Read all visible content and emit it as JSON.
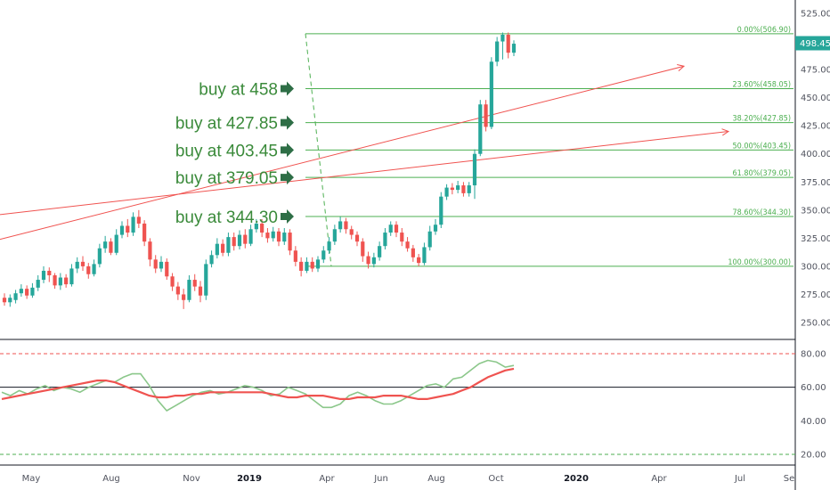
{
  "chart_data": {
    "type": "candlestick",
    "price_axis": {
      "ticks": [
        250,
        275,
        300,
        325,
        350,
        375,
        400,
        425,
        450,
        475,
        500,
        525
      ],
      "tick_labels": [
        "250.00",
        "275.00",
        "300.00",
        "325.00",
        "350.00",
        "375.00",
        "400.00",
        "425.00",
        "450.00",
        "475.00",
        "",
        "525.00"
      ],
      "ylim": [
        238,
        530
      ]
    },
    "last_price": {
      "value": 498.45,
      "label": "498.45",
      "color": "#26a69a"
    },
    "time_axis": {
      "labels": [
        "May",
        "Aug",
        "Nov",
        "2019",
        "Apr",
        "Jun",
        "Aug",
        "Oct",
        "2020",
        "Apr",
        "Jul",
        "Se"
      ],
      "bold": [
        "2019",
        "2020"
      ]
    },
    "fib_levels": [
      {
        "value": 506.9,
        "label": "0.00%(506.90)"
      },
      {
        "value": 458.05,
        "label": "23.60%(458.05)"
      },
      {
        "value": 427.85,
        "label": "38.20%(427.85)"
      },
      {
        "value": 403.45,
        "label": "50.00%(403.45)"
      },
      {
        "value": 379.05,
        "label": "61.80%(379.05)"
      },
      {
        "value": 344.3,
        "label": "78.60%(344.30)"
      },
      {
        "value": 300.0,
        "label": "100.00%(300.00)"
      }
    ],
    "annotations": [
      {
        "text": "buy at 458",
        "price": 458
      },
      {
        "text": "buy at 427.85",
        "price": 427.85
      },
      {
        "text": "buy at 403.45",
        "price": 403.45
      },
      {
        "text": "buy at 379.05",
        "price": 379.05
      },
      {
        "text": "buy at 344.30",
        "price": 344.3
      }
    ],
    "candles": [
      [
        272,
        268,
        276,
        265
      ],
      [
        268,
        272,
        275,
        264
      ],
      [
        270,
        276,
        279,
        267
      ],
      [
        276,
        280,
        284,
        273
      ],
      [
        280,
        274,
        283,
        271
      ],
      [
        274,
        281,
        285,
        272
      ],
      [
        281,
        288,
        292,
        278
      ],
      [
        288,
        296,
        300,
        285
      ],
      [
        296,
        292,
        299,
        286
      ],
      [
        292,
        283,
        294,
        280
      ],
      [
        283,
        290,
        294,
        279
      ],
      [
        290,
        284,
        293,
        281
      ],
      [
        284,
        298,
        302,
        282
      ],
      [
        298,
        304,
        308,
        294
      ],
      [
        304,
        300,
        309,
        296
      ],
      [
        300,
        293,
        303,
        289
      ],
      [
        293,
        302,
        306,
        291
      ],
      [
        302,
        316,
        320,
        299
      ],
      [
        316,
        322,
        327,
        312
      ],
      [
        322,
        312,
        325,
        310
      ],
      [
        312,
        328,
        333,
        310
      ],
      [
        328,
        336,
        340,
        325
      ],
      [
        336,
        330,
        342,
        326
      ],
      [
        330,
        344,
        348,
        327
      ],
      [
        344,
        338,
        350,
        334
      ],
      [
        338,
        322,
        341,
        318
      ],
      [
        322,
        306,
        325,
        300
      ],
      [
        306,
        298,
        310,
        294
      ],
      [
        298,
        304,
        309,
        295
      ],
      [
        304,
        291,
        307,
        288
      ],
      [
        291,
        282,
        294,
        278
      ],
      [
        282,
        275,
        286,
        270
      ],
      [
        275,
        270,
        280,
        262
      ],
      [
        270,
        288,
        292,
        268
      ],
      [
        288,
        282,
        293,
        278
      ],
      [
        282,
        274,
        287,
        268
      ],
      [
        274,
        302,
        306,
        270
      ],
      [
        302,
        310,
        314,
        299
      ],
      [
        310,
        320,
        325,
        307
      ],
      [
        320,
        312,
        324,
        309
      ],
      [
        312,
        326,
        330,
        309
      ],
      [
        326,
        318,
        330,
        314
      ],
      [
        318,
        328,
        332,
        315
      ],
      [
        328,
        320,
        333,
        316
      ],
      [
        320,
        333,
        337,
        318
      ],
      [
        333,
        338,
        342,
        330
      ],
      [
        338,
        330,
        342,
        326
      ],
      [
        330,
        325,
        334,
        321
      ],
      [
        325,
        331,
        335,
        322
      ],
      [
        331,
        322,
        334,
        318
      ],
      [
        322,
        330,
        334,
        319
      ],
      [
        330,
        314,
        333,
        310
      ],
      [
        314,
        304,
        318,
        300
      ],
      [
        304,
        296,
        308,
        291
      ],
      [
        296,
        304,
        308,
        294
      ],
      [
        304,
        298,
        308,
        295
      ],
      [
        298,
        306,
        309,
        295
      ],
      [
        306,
        314,
        318,
        303
      ],
      [
        314,
        322,
        326,
        311
      ],
      [
        322,
        333,
        337,
        319
      ],
      [
        333,
        340,
        344,
        330
      ],
      [
        340,
        333,
        343,
        329
      ],
      [
        333,
        328,
        336,
        324
      ],
      [
        328,
        322,
        331,
        318
      ],
      [
        322,
        309,
        325,
        304
      ],
      [
        309,
        302,
        313,
        298
      ],
      [
        302,
        308,
        312,
        299
      ],
      [
        308,
        318,
        322,
        305
      ],
      [
        318,
        330,
        334,
        315
      ],
      [
        330,
        337,
        340,
        327
      ],
      [
        337,
        330,
        340,
        326
      ],
      [
        330,
        322,
        334,
        318
      ],
      [
        322,
        316,
        326,
        313
      ],
      [
        316,
        308,
        319,
        304
      ],
      [
        308,
        303,
        311,
        300
      ],
      [
        303,
        317,
        321,
        301
      ],
      [
        317,
        331,
        336,
        314
      ],
      [
        331,
        337,
        342,
        328
      ],
      [
        337,
        362,
        366,
        334
      ],
      [
        362,
        370,
        373,
        359
      ],
      [
        370,
        368,
        374,
        364
      ],
      [
        368,
        372,
        376,
        365
      ],
      [
        372,
        365,
        375,
        362
      ],
      [
        365,
        372,
        375,
        362
      ],
      [
        372,
        400,
        404,
        360
      ],
      [
        400,
        444,
        448,
        398
      ],
      [
        444,
        424,
        448,
        420
      ],
      [
        424,
        482,
        486,
        422
      ],
      [
        482,
        500,
        504,
        478
      ],
      [
        500,
        506,
        508,
        484
      ],
      [
        506,
        490,
        508,
        485
      ],
      [
        490,
        498,
        501,
        487
      ]
    ],
    "channel_lines": [
      {
        "p1": [
          0,
          324
        ],
        "p2": [
          100,
          478
        ],
        "color": "#f05350"
      },
      {
        "p1": [
          0,
          346
        ],
        "p2": [
          100,
          420
        ],
        "color": "#f05350"
      }
    ],
    "rsi": {
      "ticks": [
        20,
        40,
        60,
        80
      ],
      "tick_labels": [
        "20.00",
        "40.00",
        "60.00",
        "80.00"
      ],
      "upper": 80,
      "lower": 20,
      "mid": 60,
      "series": [
        {
          "name": "",
          "color": "#8bc78a",
          "values": [
            57,
            55,
            58,
            56,
            59,
            61,
            58,
            60,
            59,
            57,
            60,
            62,
            64,
            63,
            66,
            68,
            68,
            61,
            52,
            46,
            49,
            52,
            55,
            57,
            58,
            56,
            57,
            59,
            61,
            60,
            58,
            55,
            56,
            60,
            58,
            56,
            52,
            48,
            48,
            50,
            55,
            57,
            55,
            52,
            50,
            50,
            52,
            55,
            58,
            61,
            62,
            60,
            65,
            66,
            70,
            74,
            76,
            75,
            72,
            73
          ]
        },
        {
          "name": "",
          "color": "#ef5350",
          "values": [
            53,
            54,
            55,
            56,
            57,
            58,
            59,
            60,
            61,
            62,
            63,
            64,
            64,
            63,
            61,
            59,
            57,
            55,
            54,
            54,
            55,
            55,
            56,
            56,
            57,
            57,
            57,
            57,
            57,
            57,
            57,
            56,
            55,
            54,
            54,
            55,
            55,
            55,
            54,
            53,
            53,
            54,
            54,
            54,
            55,
            55,
            55,
            54,
            53,
            53,
            54,
            55,
            56,
            58,
            60,
            63,
            66,
            68,
            70,
            71
          ]
        }
      ]
    }
  }
}
